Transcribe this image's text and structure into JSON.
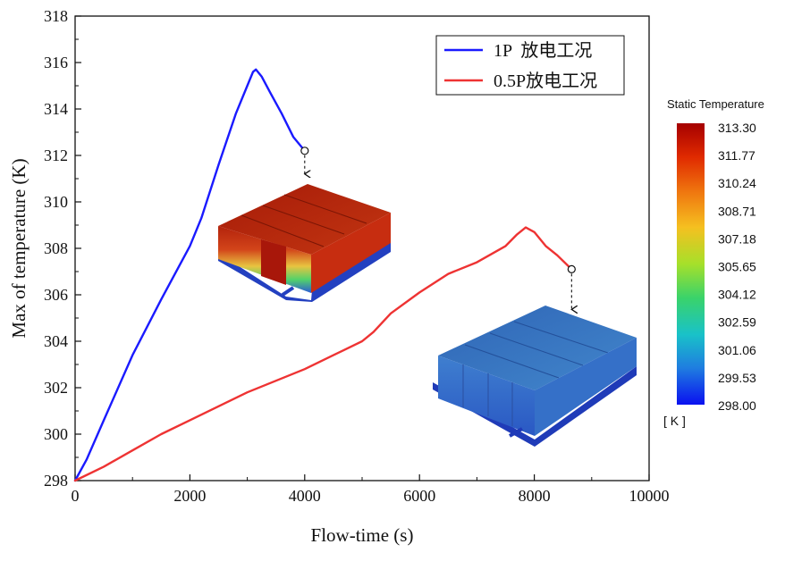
{
  "chart_data": {
    "type": "line",
    "xlabel": "Flow-time (s)",
    "ylabel": "Max of temperature (K)",
    "xlim": [
      0,
      10000
    ],
    "ylim": [
      298,
      318
    ],
    "x_ticks": [
      0,
      2000,
      4000,
      6000,
      8000,
      10000
    ],
    "y_ticks": [
      298,
      300,
      302,
      304,
      306,
      308,
      310,
      312,
      314,
      316,
      318
    ],
    "grid": false,
    "legend": "top-right",
    "series": [
      {
        "name": "1P  放电工况",
        "color": "#1a1aff",
        "x": [
          0,
          200,
          500,
          1000,
          1500,
          2000,
          2200,
          2500,
          2800,
          3000,
          3100,
          3150,
          3250,
          3400,
          3600,
          3800,
          4000
        ],
        "y": [
          298.0,
          298.9,
          300.6,
          303.4,
          305.8,
          308.1,
          309.3,
          311.6,
          313.8,
          315.0,
          315.6,
          315.7,
          315.4,
          314.7,
          313.8,
          312.8,
          312.2
        ]
      },
      {
        "name": "0.5P放电工况",
        "color": "#ee3333",
        "x": [
          0,
          500,
          1000,
          1500,
          2000,
          2500,
          3000,
          3500,
          4000,
          4500,
          5000,
          5200,
          5500,
          6000,
          6500,
          7000,
          7500,
          7700,
          7850,
          8000,
          8200,
          8400,
          8650
        ],
        "y": [
          298.0,
          298.6,
          299.3,
          300.0,
          300.6,
          301.2,
          301.8,
          302.3,
          302.8,
          303.4,
          304.0,
          304.4,
          305.2,
          306.1,
          306.9,
          307.4,
          308.1,
          308.6,
          308.9,
          308.7,
          308.1,
          307.7,
          307.1
        ]
      }
    ],
    "colorbar": {
      "title": "Static Temperature",
      "unit": "[ K ]",
      "labels": [
        "313.30",
        "311.77",
        "310.24",
        "308.71",
        "307.18",
        "305.65",
        "304.12",
        "302.59",
        "301.06",
        "299.53",
        "298.00"
      ]
    },
    "annotations": [
      {
        "series": 0,
        "x": 4000,
        "y": 312.2,
        "marker": "open-circle",
        "pointer": "dashed-arrow-down"
      },
      {
        "series": 1,
        "x": 8650,
        "y": 307.1,
        "marker": "open-circle",
        "pointer": "dashed-arrow-down"
      }
    ]
  },
  "insets": {
    "inset_1": {
      "description": "battery-module-temperature-contour",
      "max_color": "#b3200a",
      "min_color": "#1f3fd0"
    },
    "inset_2": {
      "description": "battery-module-temperature-contour",
      "max_color": "#3b79c8",
      "min_color": "#1e3fb8"
    }
  }
}
